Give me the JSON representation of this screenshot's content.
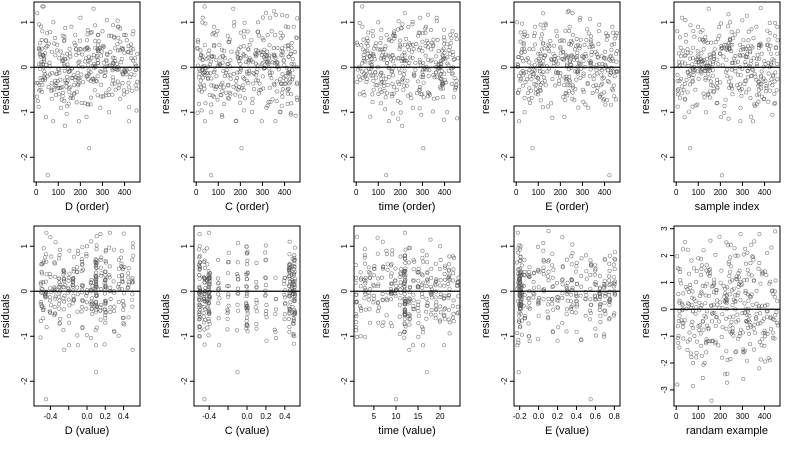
{
  "colors": {
    "point": "#555555",
    "axis": "#000000",
    "zero_line": "#000000",
    "background": "#ffffff"
  },
  "chart_data": [
    {
      "type": "scatter",
      "xlabel": "D (order)",
      "ylabel": "residuals",
      "xlim": [
        -10,
        470
      ],
      "ylim": [
        -2.55,
        1.45
      ],
      "xticks": [
        0,
        100,
        200,
        300,
        400
      ],
      "xtick_labels": [
        "0",
        "100",
        "200",
        "300",
        "400"
      ],
      "yticks": [
        -2,
        -1,
        0,
        1
      ],
      "ytick_labels": [
        "-2",
        "-1",
        "0",
        "1"
      ],
      "reference_line_y": 0,
      "seed": 11,
      "grid": false,
      "x": [
        5,
        12,
        20,
        28,
        35,
        44,
        52,
        60,
        70,
        78,
        86,
        95,
        104,
        112,
        120,
        130,
        140,
        150,
        160,
        170,
        180,
        190,
        200,
        210,
        220,
        230,
        240,
        250,
        260,
        270,
        280,
        290,
        300,
        310,
        320,
        330,
        340,
        350,
        360,
        370,
        380,
        390,
        400,
        410,
        420,
        430,
        440,
        450,
        458
      ],
      "y": [
        1.2,
        0.4,
        -0.5,
        0.8,
        -0.2,
        0.6,
        -2.4,
        0.1,
        -0.7,
        1.0,
        -0.3,
        0.5,
        0.2,
        -0.9,
        0.7,
        -1.3,
        0.3,
        -0.1,
        0.9,
        -0.6,
        0.4,
        -0.4,
        1.1,
        0.0,
        -0.8,
        0.6,
        -1.8,
        0.2,
        1.3,
        -0.3,
        0.5,
        -0.9,
        0.8,
        -0.2,
        0.3,
        -1.0,
        0.7,
        0.1,
        -0.5,
        0.9,
        -0.7,
        0.4,
        -0.1,
        0.6,
        -1.2,
        0.2,
        0.8,
        -0.4,
        0.3
      ],
      "n_extra": 320
    },
    {
      "type": "scatter",
      "xlabel": "C (order)",
      "ylabel": "residuals",
      "xlim": [
        -10,
        470
      ],
      "ylim": [
        -2.55,
        1.45
      ],
      "xticks": [
        0,
        100,
        200,
        300,
        400
      ],
      "xtick_labels": [
        "0",
        "100",
        "200",
        "300",
        "400"
      ],
      "yticks": [
        -2,
        -1,
        0,
        1
      ],
      "ytick_labels": [
        "-2",
        "-1",
        "0",
        "1"
      ],
      "reference_line_y": 0,
      "seed": 23,
      "grid": false,
      "x": [
        8,
        18,
        30,
        42,
        55,
        68,
        80,
        92,
        105,
        118,
        130,
        142,
        155,
        168,
        180,
        192,
        205,
        218,
        230,
        242,
        255,
        268,
        280,
        292,
        305,
        318,
        330,
        342,
        355,
        368,
        380,
        392,
        405,
        418,
        430,
        442,
        455
      ],
      "y": [
        0.6,
        -0.4,
        1.1,
        -0.8,
        0.3,
        -2.4,
        0.9,
        -0.2,
        0.5,
        -1.1,
        0.2,
        0.7,
        -0.6,
        1.3,
        -0.3,
        0.4,
        -1.8,
        0.8,
        -0.1,
        0.5,
        -0.7,
        0.3,
        1.0,
        -0.5,
        0.6,
        -0.9,
        0.2,
        0.8,
        -0.4,
        0.1,
        -1.0,
        0.7,
        -0.2,
        0.4,
        -0.6,
        0.9,
        0.0
      ],
      "n_extra": 330
    },
    {
      "type": "scatter",
      "xlabel": "time (order)",
      "ylabel": "residuals",
      "xlim": [
        -10,
        470
      ],
      "ylim": [
        -2.55,
        1.45
      ],
      "xticks": [
        0,
        100,
        200,
        300,
        400
      ],
      "xtick_labels": [
        "0",
        "100",
        "200",
        "300",
        "400"
      ],
      "yticks": [
        -2,
        -1,
        0,
        1
      ],
      "ytick_labels": [
        "-2",
        "-1",
        "0",
        "1"
      ],
      "reference_line_y": 0,
      "seed": 37,
      "grid": false,
      "x": [
        6,
        16,
        28,
        40,
        52,
        64,
        76,
        88,
        100,
        112,
        124,
        136,
        148,
        160,
        172,
        184,
        196,
        208,
        220,
        232,
        244,
        256,
        268,
        280,
        292,
        304,
        316,
        328,
        340,
        352,
        364,
        376,
        388,
        400,
        412,
        424,
        436,
        448,
        460
      ],
      "y": [
        0.5,
        -0.6,
        0.9,
        -0.2,
        0.3,
        -1.1,
        0.7,
        -0.4,
        1.0,
        -0.8,
        0.2,
        -2.4,
        0.6,
        -0.1,
        0.8,
        -0.5,
        0.4,
        -1.3,
        1.2,
        -0.3,
        0.5,
        -0.9,
        0.1,
        0.7,
        -0.6,
        -1.8,
        0.9,
        -0.2,
        0.4,
        -0.7,
        1.1,
        0.0,
        -0.4,
        0.6,
        -1.0,
        0.3,
        0.8,
        -0.5,
        0.2
      ],
      "n_extra": 320
    },
    {
      "type": "scatter",
      "xlabel": "E (order)",
      "ylabel": "residuals",
      "xlim": [
        -10,
        470
      ],
      "ylim": [
        -2.55,
        1.45
      ],
      "xticks": [
        0,
        100,
        200,
        300,
        400
      ],
      "xtick_labels": [
        "0",
        "100",
        "200",
        "300",
        "400"
      ],
      "yticks": [
        -2,
        -1,
        0,
        1
      ],
      "ytick_labels": [
        "-2",
        "-1",
        "0",
        "1"
      ],
      "reference_line_y": 0,
      "seed": 41,
      "grid": false,
      "x": [
        4,
        14,
        26,
        38,
        50,
        62,
        74,
        86,
        98,
        110,
        122,
        134,
        146,
        158,
        170,
        182,
        194,
        206,
        218,
        230,
        242,
        254,
        266,
        278,
        290,
        302,
        314,
        326,
        338,
        350,
        362,
        374,
        386,
        398,
        410,
        422,
        434,
        446,
        452
      ],
      "y": [
        1.0,
        -0.5,
        0.4,
        -1.0,
        0.7,
        -0.2,
        -1.8,
        0.9,
        -0.6,
        0.3,
        1.2,
        -0.4,
        0.5,
        -0.8,
        0.1,
        0.8,
        -0.3,
        0.6,
        -1.1,
        0.2,
        0.9,
        -0.7,
        0.4,
        -0.1,
        1.1,
        -0.5,
        0.3,
        -0.9,
        0.6,
        0.0,
        -0.4,
        0.8,
        -0.6,
        0.2,
        0.7,
        -2.4,
        0.5,
        -0.2,
        0.3
      ],
      "n_extra": 320
    },
    {
      "type": "scatter",
      "xlabel": "sample index",
      "ylabel": "residuals",
      "xlim": [
        -10,
        470
      ],
      "ylim": [
        -2.55,
        1.45
      ],
      "xticks": [
        0,
        100,
        200,
        300,
        400
      ],
      "xtick_labels": [
        "0",
        "100",
        "200",
        "300",
        "400"
      ],
      "yticks": [
        -2,
        -1,
        0,
        1
      ],
      "ytick_labels": [
        "-2",
        "-1",
        "0",
        "1"
      ],
      "reference_line_y": 0,
      "seed": 53,
      "grid": false,
      "x": [
        5,
        15,
        27,
        39,
        51,
        63,
        75,
        87,
        99,
        111,
        123,
        135,
        147,
        159,
        171,
        183,
        195,
        207,
        219,
        231,
        243,
        255,
        267,
        279,
        291,
        303,
        315,
        327,
        339,
        351,
        363,
        375,
        387,
        399,
        411,
        423,
        435,
        447,
        459
      ],
      "y": [
        0.8,
        -0.3,
        1.1,
        -0.7,
        0.4,
        -1.8,
        0.2,
        -0.5,
        0.9,
        -0.1,
        0.6,
        -1.0,
        1.3,
        -0.4,
        0.3,
        -0.8,
        0.7,
        -2.4,
        0.5,
        -0.2,
        1.0,
        -0.6,
        0.1,
        0.8,
        -0.9,
        0.4,
        -0.3,
        0.6,
        -1.1,
        0.2,
        0.9,
        -0.5,
        0.3,
        -0.7,
        0.5,
        0.0,
        -0.4,
        0.7,
        0.6
      ],
      "n_extra": 320
    },
    {
      "type": "scatter",
      "xlabel": "D (value)",
      "ylabel": "residuals",
      "xlim": [
        -0.58,
        0.58
      ],
      "ylim": [
        -2.55,
        1.45
      ],
      "xticks": [
        -0.4,
        -0.2,
        0.0,
        0.2,
        0.4
      ],
      "xtick_labels": [
        "-0.4",
        "",
        "0.0",
        "0.2",
        "0.4"
      ],
      "yticks": [
        -2,
        -1,
        0,
        1
      ],
      "ytick_labels": [
        "-2",
        "-1",
        "0",
        "1"
      ],
      "reference_line_y": 0,
      "seed": 67,
      "grid": false,
      "x": [
        -0.5,
        -0.45,
        -0.4,
        -0.35,
        -0.3,
        -0.25,
        -0.2,
        -0.15,
        -0.1,
        -0.05,
        0.0,
        0.05,
        0.1,
        0.1,
        0.1,
        0.1,
        0.15,
        0.2,
        0.25,
        0.3,
        0.35,
        0.4,
        0.45,
        0.5,
        -0.48,
        -0.05,
        0.2,
        0.38
      ],
      "y": [
        0.6,
        -2.4,
        1.2,
        -0.5,
        0.8,
        -1.3,
        0.3,
        -0.2,
        0.9,
        -0.8,
        1.0,
        -0.4,
        -1.8,
        0.2,
        -0.3,
        -0.1,
        0.7,
        -0.6,
        1.3,
        -0.9,
        0.5,
        -0.3,
        0.4,
        -1.3,
        0.2,
        0.6,
        -0.7,
        0.9
      ],
      "n_extra": 320
    },
    {
      "type": "scatter",
      "xlabel": "C (value)",
      "ylabel": "residuals",
      "xlim": [
        -0.56,
        0.56
      ],
      "ylim": [
        -2.55,
        1.45
      ],
      "xticks": [
        -0.4,
        -0.2,
        0.0,
        0.2,
        0.4
      ],
      "xtick_labels": [
        "-0.4",
        "",
        "0.0",
        "0.2",
        "0.4"
      ],
      "yticks": [
        -2,
        -1,
        0,
        1
      ],
      "ytick_labels": [
        "-2",
        "-1",
        "0",
        "1"
      ],
      "reference_line_y": 0,
      "seed": 79,
      "grid": false,
      "x": [
        -0.5,
        -0.5,
        -0.5,
        -0.5,
        -0.45,
        -0.45,
        -0.45,
        -0.4,
        -0.4,
        -0.4,
        -0.3,
        -0.2,
        -0.1,
        0.0,
        0.0,
        0.0,
        0.1,
        0.2,
        0.3,
        0.4,
        0.45,
        0.45,
        0.45,
        0.5,
        0.5,
        0.5,
        -0.42,
        0.48
      ],
      "y": [
        1.0,
        -0.3,
        0.5,
        -0.8,
        0.2,
        -2.4,
        0.9,
        -0.5,
        0.3,
        1.3,
        -0.6,
        0.4,
        -1.8,
        0.1,
        -0.4,
        0.6,
        -0.2,
        0.7,
        -0.9,
        0.3,
        1.1,
        -0.5,
        0.4,
        -0.2,
        0.8,
        -1.0,
        0.6,
        0.0
      ],
      "n_extra": 320
    },
    {
      "type": "scatter",
      "xlabel": "time (value)",
      "ylabel": "residuals",
      "xlim": [
        0.5,
        24.5
      ],
      "ylim": [
        -2.55,
        1.45
      ],
      "xticks": [
        5,
        10,
        15,
        20
      ],
      "xtick_labels": [
        "5",
        "10",
        "15",
        "20"
      ],
      "yticks": [
        -2,
        -1,
        0,
        1
      ],
      "ytick_labels": [
        "-2",
        "-1",
        "0",
        "1"
      ],
      "reference_line_y": 0,
      "seed": 83,
      "grid": false,
      "x": [
        1,
        2,
        3,
        4,
        5,
        6,
        7,
        8,
        9,
        10,
        11,
        12,
        12,
        12,
        13,
        14,
        15,
        16,
        17,
        18,
        19,
        20,
        21,
        22,
        23,
        24,
        12,
        9
      ],
      "y": [
        0.3,
        -1.0,
        0.8,
        -0.4,
        0.5,
        -0.7,
        1.1,
        -0.2,
        0.6,
        -2.4,
        0.4,
        1.3,
        -0.9,
        0.2,
        -1.3,
        0.7,
        -0.3,
        0.9,
        -1.8,
        0.5,
        -0.6,
        1.0,
        -0.1,
        0.6,
        -0.5,
        0.2,
        -0.4,
        0.0
      ],
      "n_extra": 320
    },
    {
      "type": "scatter",
      "xlabel": "E (value)",
      "ylabel": "residuals",
      "xlim": [
        -0.26,
        0.86
      ],
      "ylim": [
        -2.55,
        1.45
      ],
      "xticks": [
        -0.2,
        0.0,
        0.2,
        0.4,
        0.6,
        0.8
      ],
      "xtick_labels": [
        "-0.2",
        "0.0",
        "0.2",
        "0.4",
        "0.6",
        "0.8"
      ],
      "yticks": [
        -2,
        -1,
        0,
        1
      ],
      "ytick_labels": [
        "-2",
        "-1",
        "0",
        "1"
      ],
      "reference_line_y": 0,
      "seed": 97,
      "grid": false,
      "x": [
        -0.22,
        -0.21,
        -0.2,
        -0.2,
        -0.2,
        -0.19,
        -0.19,
        -0.18,
        -0.15,
        -0.1,
        -0.05,
        0.0,
        0.05,
        0.1,
        0.15,
        0.2,
        0.25,
        0.3,
        0.35,
        0.4,
        0.45,
        0.5,
        0.55,
        0.6,
        0.65,
        0.7,
        0.75,
        0.8
      ],
      "y": [
        1.3,
        -1.8,
        0.5,
        -0.8,
        0.2,
        -0.5,
        1.0,
        -0.3,
        0.7,
        -1.0,
        0.4,
        -0.2,
        0.9,
        -0.6,
        0.3,
        -1.1,
        1.2,
        -0.4,
        0.6,
        -0.9,
        0.1,
        0.8,
        -2.4,
        0.5,
        -0.3,
        0.7,
        -0.6,
        0.0
      ],
      "n_extra": 310
    },
    {
      "type": "scatter",
      "xlabel": "randam example",
      "ylabel": "residuals",
      "xlim": [
        -10,
        470
      ],
      "ylim": [
        -3.6,
        3.1
      ],
      "xticks": [
        0,
        100,
        200,
        300,
        400
      ],
      "xtick_labels": [
        "0",
        "100",
        "200",
        "300",
        "400"
      ],
      "yticks": [
        -3,
        -2,
        -1,
        0,
        1,
        2,
        3
      ],
      "ytick_labels": [
        "-3",
        "-2",
        "-1",
        "0",
        "1",
        "2",
        "3"
      ],
      "reference_line_y": 0,
      "seed": 109,
      "grid": false,
      "x": [
        5,
        15,
        28,
        40,
        52,
        64,
        76,
        88,
        100,
        112,
        124,
        136,
        148,
        160,
        172,
        184,
        196,
        208,
        220,
        232,
        244,
        256,
        268,
        280,
        292,
        304,
        316,
        328,
        340,
        352,
        364,
        376,
        388,
        400,
        412,
        424,
        436,
        448,
        460
      ],
      "y": [
        -2.8,
        1.5,
        -0.5,
        2.5,
        -1.2,
        0.8,
        -2.0,
        0.3,
        1.9,
        -0.9,
        2.2,
        -1.6,
        0.5,
        -3.4,
        1.1,
        -0.3,
        2.7,
        -1.8,
        0.6,
        -2.4,
        1.4,
        -0.7,
        2.0,
        -1.1,
        0.9,
        -2.6,
        1.7,
        -0.4,
        2.4,
        -1.5,
        0.2,
        -2.2,
        1.3,
        -0.8,
        2.1,
        -1.9,
        0.7,
        2.9,
        -0.6
      ],
      "n_extra": 320
    }
  ]
}
